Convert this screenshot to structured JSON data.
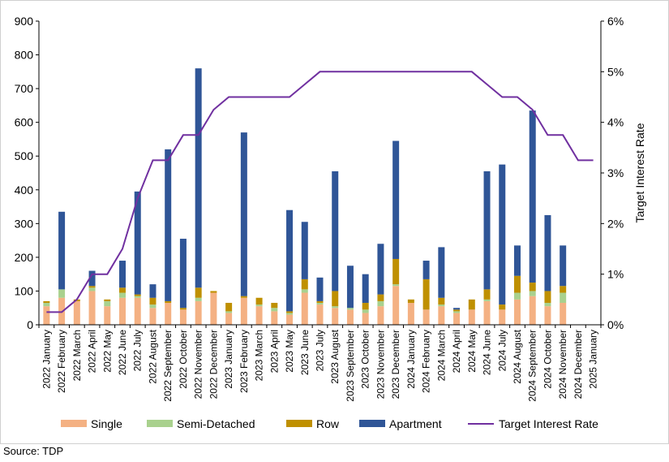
{
  "source": "Source: TDP",
  "chart_data": {
    "type": "bar",
    "stacked": true,
    "categories": [
      "2022 January",
      "2022 February",
      "2022 March",
      "2022 April",
      "2022 May",
      "2022 June",
      "2022 July",
      "2022 August",
      "2022 September",
      "2022 October",
      "2022 November",
      "2022 December",
      "2023 January",
      "2023 February",
      "2023 March",
      "2023 April",
      "2023 May",
      "2023 June",
      "2023 July",
      "2023 August",
      "2023 September",
      "2023 October",
      "2023 November",
      "2023 December",
      "2024 January",
      "2024 February",
      "2024 March",
      "2024 April",
      "2024 May",
      "2024 June",
      "2024 July",
      "2024 August",
      "2024 September",
      "2024 October",
      "2024 November",
      "2024 December",
      "2025 January"
    ],
    "series": [
      {
        "name": "Single",
        "color": "#f4b183",
        "values": [
          55,
          80,
          70,
          100,
          55,
          80,
          80,
          50,
          65,
          45,
          70,
          95,
          35,
          80,
          55,
          40,
          30,
          95,
          60,
          50,
          45,
          35,
          55,
          115,
          65,
          45,
          55,
          35,
          45,
          70,
          45,
          75,
          85,
          55,
          65,
          0,
          0
        ]
      },
      {
        "name": "Semi-Detached",
        "color": "#a9d18e",
        "values": [
          10,
          25,
          0,
          10,
          15,
          15,
          5,
          10,
          0,
          0,
          10,
          0,
          5,
          0,
          5,
          10,
          5,
          10,
          5,
          5,
          5,
          10,
          15,
          5,
          0,
          0,
          5,
          5,
          0,
          5,
          0,
          20,
          15,
          10,
          30,
          0,
          0
        ]
      },
      {
        "name": "Row",
        "color": "#bf9000",
        "values": [
          5,
          0,
          5,
          5,
          5,
          15,
          5,
          20,
          5,
          5,
          30,
          5,
          25,
          5,
          20,
          15,
          5,
          30,
          5,
          45,
          0,
          20,
          20,
          75,
          10,
          90,
          20,
          5,
          30,
          30,
          15,
          50,
          25,
          35,
          20,
          0,
          0
        ]
      },
      {
        "name": "Apartment",
        "color": "#2f5597",
        "values": [
          0,
          230,
          0,
          45,
          0,
          80,
          305,
          40,
          450,
          205,
          650,
          0,
          0,
          485,
          0,
          0,
          300,
          170,
          70,
          355,
          125,
          85,
          150,
          350,
          0,
          55,
          150,
          5,
          0,
          350,
          415,
          90,
          510,
          225,
          120,
          0,
          0
        ]
      }
    ],
    "line_series": {
      "name": "Target Interest Rate",
      "color": "#7030a0",
      "values": [
        0.25,
        0.25,
        0.5,
        1.0,
        1.0,
        1.5,
        2.5,
        3.25,
        3.25,
        3.75,
        3.75,
        4.25,
        4.5,
        4.5,
        4.5,
        4.5,
        4.5,
        4.75,
        5.0,
        5.0,
        5.0,
        5.0,
        5.0,
        5.0,
        5.0,
        5.0,
        5.0,
        5.0,
        5.0,
        4.75,
        4.5,
        4.5,
        4.25,
        3.75,
        3.75,
        3.25,
        3.25
      ]
    },
    "y_left": {
      "min": 0,
      "max": 900,
      "step": 100,
      "ticks": [
        "0",
        "100",
        "200",
        "300",
        "400",
        "500",
        "600",
        "700",
        "800",
        "900"
      ]
    },
    "y_right": {
      "min": 0,
      "max": 6,
      "step": 1,
      "label": "Target Interest Rate",
      "ticks": [
        "0%",
        "1%",
        "2%",
        "3%",
        "4%",
        "5%",
        "6%"
      ]
    },
    "grid": false,
    "legend_position": "bottom",
    "legend": [
      "Single",
      "Semi-Detached",
      "Row",
      "Apartment",
      "Target Interest Rate"
    ]
  }
}
